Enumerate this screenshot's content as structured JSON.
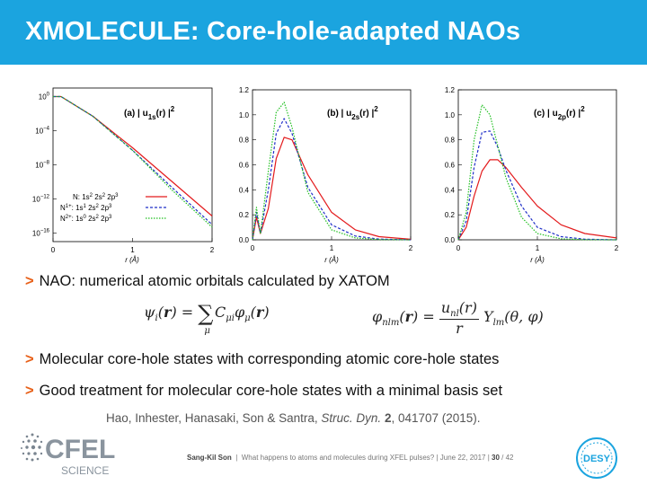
{
  "slide": {
    "title": "XMOLECULE: Core-hole-adapted NAOs",
    "bullets": [
      "NAO: numerical atomic orbitals calculated by XATOM",
      "Molecular core-hole states with corresponding atomic core-hole states",
      "Good treatment for molecular core-hole states with a minimal basis set"
    ],
    "bullet_marker": ">",
    "citation_prefix": "Hao, Inhester, Hanasaki, Son & Santra, ",
    "citation_journal": "Struc. Dyn.",
    "citation_volume": "2",
    "citation_suffix": ", 041707 (2015).",
    "footer": {
      "author": "Sang-Kil Son",
      "talk": "What happens to atoms and molecules during XFEL pulses?",
      "date": "June 22, 2017",
      "page": "30",
      "total": "42"
    },
    "logos": {
      "cfel_top": "CFEL",
      "cfel_bottom": "SCIENCE",
      "desy": "DESY"
    }
  },
  "colors": {
    "accent": "#1ba4df",
    "bullet": "#e8611a",
    "red": "#e31a1c",
    "blue": "#1f2fc8",
    "green": "#22c022"
  },
  "chart_data": [
    {
      "type": "line",
      "panel_label": "(a)",
      "ylog": true,
      "xlim": [
        0,
        2
      ],
      "ylim": [
        1e-17,
        10
      ],
      "xticks": [
        "0",
        "1",
        "2"
      ],
      "yticks": [
        1,
        0.0001,
        1e-08,
        1e-12,
        1e-16
      ],
      "ytick_labels": [
        "10^0",
        "10^-4",
        "10^-8",
        "10^-12",
        "10^-16"
      ],
      "xlabel": "r (Å)",
      "series": [
        {
          "name": "N: 1s2 2s2 2p3",
          "color": "red",
          "x": [
            0,
            0.1,
            0.5,
            1.0,
            1.5,
            2.0
          ],
          "y": [
            1.0,
            1.0,
            0.005,
            1e-06,
            1e-10,
            1e-14
          ]
        },
        {
          "name": "N1+: 1s1 2s2 2p3",
          "color": "blue",
          "x": [
            0,
            0.1,
            0.5,
            1.0,
            1.5,
            2.0
          ],
          "y": [
            1.0,
            1.0,
            0.005,
            5e-07,
            2e-11,
            1e-15
          ]
        },
        {
          "name": "N2+: 1s0 2s2 2p3",
          "color": "green",
          "x": [
            0,
            0.1,
            0.5,
            1.0,
            1.5,
            2.0
          ],
          "y": [
            1.0,
            1.0,
            0.005,
            5e-07,
            1e-11,
            5e-16
          ]
        }
      ]
    },
    {
      "type": "line",
      "panel_label": "(b)",
      "ylog": false,
      "xlim": [
        0,
        2
      ],
      "ylim": [
        0,
        1.2
      ],
      "xticks": [
        "0",
        "1",
        "2"
      ],
      "yticks": [
        0,
        0.2,
        0.4,
        0.6,
        0.8,
        1.0,
        1.2
      ],
      "ytick_labels": [
        "0.0",
        "0.2",
        "0.4",
        "0.6",
        "0.8",
        "1.0",
        "1.2"
      ],
      "xlabel": "r (Å)",
      "series": [
        {
          "name": "N",
          "color": "red",
          "x": [
            0,
            0.05,
            0.1,
            0.2,
            0.3,
            0.4,
            0.5,
            0.7,
            1.0,
            1.3,
            1.6,
            2.0
          ],
          "y": [
            0,
            0.18,
            0.05,
            0.25,
            0.65,
            0.82,
            0.8,
            0.52,
            0.22,
            0.08,
            0.025,
            0.004
          ]
        },
        {
          "name": "N1+",
          "color": "blue",
          "x": [
            0,
            0.05,
            0.1,
            0.2,
            0.3,
            0.4,
            0.5,
            0.7,
            1.0,
            1.3,
            1.6,
            2.0
          ],
          "y": [
            0,
            0.22,
            0.05,
            0.4,
            0.85,
            0.97,
            0.85,
            0.42,
            0.12,
            0.03,
            0.006,
            0.0
          ]
        },
        {
          "name": "N2+",
          "color": "green",
          "x": [
            0,
            0.05,
            0.1,
            0.2,
            0.3,
            0.4,
            0.5,
            0.7,
            1.0,
            1.3,
            1.6,
            2.0
          ],
          "y": [
            0,
            0.26,
            0.05,
            0.55,
            1.02,
            1.1,
            0.9,
            0.38,
            0.08,
            0.015,
            0.002,
            0.0
          ]
        }
      ]
    },
    {
      "type": "line",
      "panel_label": "(c)",
      "ylog": false,
      "xlim": [
        0,
        2
      ],
      "ylim": [
        0,
        1.2
      ],
      "xticks": [
        "0",
        "1",
        "2"
      ],
      "yticks": [
        0,
        0.2,
        0.4,
        0.6,
        0.8,
        1.0,
        1.2
      ],
      "ytick_labels": [
        "0.0",
        "0.2",
        "0.4",
        "0.6",
        "0.8",
        "1.0",
        "1.2"
      ],
      "xlabel": "r (Å)",
      "series": [
        {
          "name": "N",
          "color": "red",
          "x": [
            0,
            0.1,
            0.2,
            0.3,
            0.4,
            0.5,
            0.6,
            0.8,
            1.0,
            1.3,
            1.6,
            2.0
          ],
          "y": [
            0,
            0.1,
            0.35,
            0.55,
            0.64,
            0.64,
            0.58,
            0.42,
            0.27,
            0.12,
            0.05,
            0.015
          ]
        },
        {
          "name": "N1+",
          "color": "blue",
          "x": [
            0,
            0.1,
            0.2,
            0.3,
            0.4,
            0.5,
            0.6,
            0.8,
            1.0,
            1.3,
            1.6,
            2.0
          ],
          "y": [
            0,
            0.15,
            0.58,
            0.86,
            0.87,
            0.74,
            0.56,
            0.27,
            0.1,
            0.025,
            0.005,
            0.0
          ]
        },
        {
          "name": "N2+",
          "color": "green",
          "x": [
            0,
            0.1,
            0.2,
            0.3,
            0.4,
            0.5,
            0.6,
            0.8,
            1.0,
            1.3,
            1.6,
            2.0
          ],
          "y": [
            0,
            0.22,
            0.8,
            1.08,
            1.0,
            0.75,
            0.5,
            0.18,
            0.05,
            0.008,
            0.001,
            0.0
          ]
        }
      ]
    }
  ]
}
